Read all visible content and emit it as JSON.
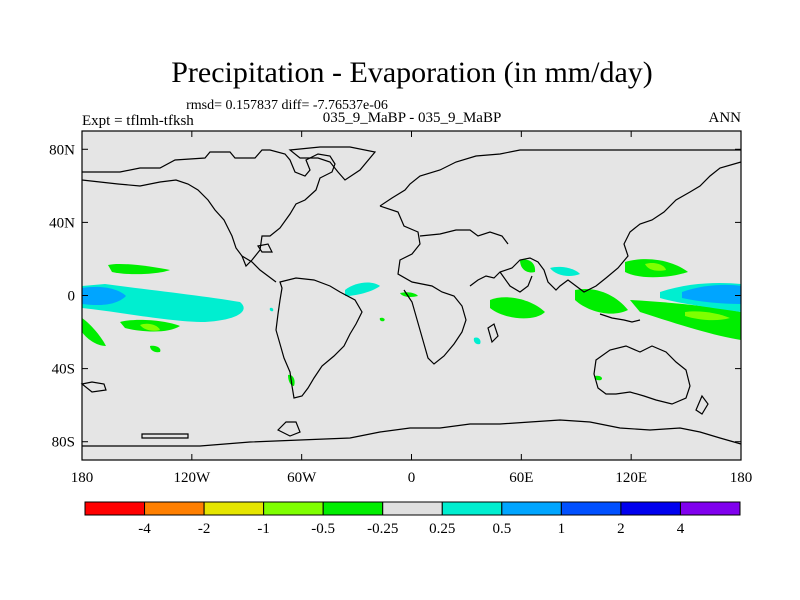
{
  "chart_data": {
    "type": "contour-map",
    "title": "Precipitation - Evaporation (in mm/day)",
    "stats": "rmsd= 0.157837 diff= -7.76537e-06",
    "subtitle_center": "035_9_MaBP - 035_9_MaBP",
    "subtitle_left": "Expt = tflmh-tfksh",
    "subtitle_right": "ANN",
    "x_ticks": [
      "180",
      "120W",
      "60W",
      "0",
      "60E",
      "120E",
      "180"
    ],
    "x_tick_values": [
      -180,
      -120,
      -60,
      0,
      60,
      120,
      180
    ],
    "y_ticks": [
      "80N",
      "40N",
      "0",
      "40S",
      "80S"
    ],
    "y_tick_values": [
      80,
      40,
      0,
      -40,
      -80
    ],
    "xlim": [
      -180,
      180
    ],
    "ylim": [
      -90,
      90
    ],
    "colorbar": {
      "labels": [
        "-4",
        "-2",
        "-1",
        "-0.5",
        "-0.25",
        "0.25",
        "0.5",
        "1",
        "2",
        "4"
      ],
      "colors": [
        "#ff0000",
        "#ff7f00",
        "#e5e500",
        "#7fff00",
        "#00ee00",
        "#e0e0e0",
        "#00eed0",
        "#00a5ff",
        "#0050ff",
        "#0000ee",
        "#8000ee"
      ]
    },
    "background_color": "#e5e5e5"
  }
}
